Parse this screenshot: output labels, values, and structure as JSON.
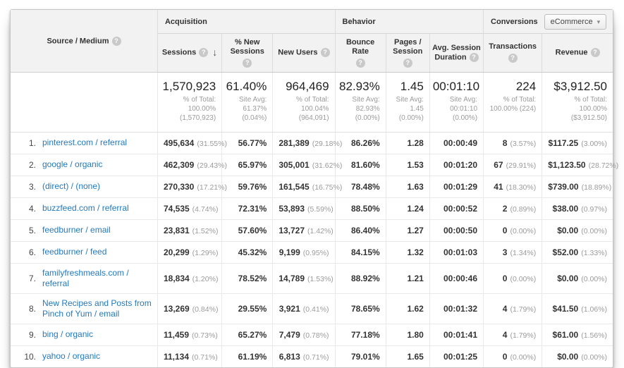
{
  "icons": {
    "help": "?",
    "sort_desc": "↓",
    "dropdown_caret": "▾"
  },
  "colors": {
    "link_blue": "#2379bd",
    "header_bg": "#f2f2f2",
    "value_text": "#333333",
    "muted_text": "#9b9b9b"
  },
  "table": {
    "dimension_header": "Source / Medium",
    "groups": {
      "acquisition": "Acquisition",
      "behavior": "Behavior",
      "conversions": "Conversions",
      "conversions_dropdown": "eCommerce"
    },
    "columns": [
      {
        "key": "sessions",
        "label": "Sessions",
        "sorted_desc": true
      },
      {
        "key": "pct_new_sessions",
        "label": "% New Sessions"
      },
      {
        "key": "new_users",
        "label": "New Users"
      },
      {
        "key": "bounce_rate",
        "label": "Bounce Rate"
      },
      {
        "key": "pages_session",
        "label": "Pages / Session"
      },
      {
        "key": "avg_duration",
        "label": "Avg. Session Duration"
      },
      {
        "key": "transactions",
        "label": "Transactions"
      },
      {
        "key": "revenue",
        "label": "Revenue"
      }
    ],
    "totals": [
      {
        "value": "1,570,923",
        "sub": "% of Total:\n100.00%\n(1,570,923)"
      },
      {
        "value": "61.40%",
        "sub": "Site Avg:\n61.37%\n(0.04%)"
      },
      {
        "value": "964,469",
        "sub": "% of Total:\n100.04% (964,091)"
      },
      {
        "value": "82.93%",
        "sub": "Site Avg:\n82.93%\n(0.00%)"
      },
      {
        "value": "1.45",
        "sub": "Site Avg:\n1.45\n(0.00%)"
      },
      {
        "value": "00:01:10",
        "sub": "Site Avg:\n00:01:10\n(0.00%)"
      },
      {
        "value": "224",
        "sub": "% of Total:\n100.00% (224)"
      },
      {
        "value": "$3,912.50",
        "sub": "% of Total: 100.00%\n($3,912.50)"
      }
    ],
    "rows": [
      {
        "rank": "1.",
        "source": "pinterest.com / referral",
        "sessions": "495,634",
        "sessions_pct": "(31.55%)",
        "pct_new_sessions": "56.77%",
        "new_users": "281,389",
        "new_users_pct": "(29.18%)",
        "bounce_rate": "86.26%",
        "pages_session": "1.28",
        "avg_duration": "00:00:49",
        "transactions": "8",
        "transactions_pct": "(3.57%)",
        "revenue": "$117.25",
        "revenue_pct": "(3.00%)"
      },
      {
        "rank": "2.",
        "source": "google / organic",
        "sessions": "462,309",
        "sessions_pct": "(29.43%)",
        "pct_new_sessions": "65.97%",
        "new_users": "305,001",
        "new_users_pct": "(31.62%)",
        "bounce_rate": "81.60%",
        "pages_session": "1.53",
        "avg_duration": "00:01:20",
        "transactions": "67",
        "transactions_pct": "(29.91%)",
        "revenue": "$1,123.50",
        "revenue_pct": "(28.72%)"
      },
      {
        "rank": "3.",
        "source": "(direct) / (none)",
        "sessions": "270,330",
        "sessions_pct": "(17.21%)",
        "pct_new_sessions": "59.76%",
        "new_users": "161,545",
        "new_users_pct": "(16.75%)",
        "bounce_rate": "78.48%",
        "pages_session": "1.63",
        "avg_duration": "00:01:29",
        "transactions": "41",
        "transactions_pct": "(18.30%)",
        "revenue": "$739.00",
        "revenue_pct": "(18.89%)"
      },
      {
        "rank": "4.",
        "source": "buzzfeed.com / referral",
        "sessions": "74,535",
        "sessions_pct": "(4.74%)",
        "pct_new_sessions": "72.31%",
        "new_users": "53,893",
        "new_users_pct": "(5.59%)",
        "bounce_rate": "88.50%",
        "pages_session": "1.24",
        "avg_duration": "00:00:52",
        "transactions": "2",
        "transactions_pct": "(0.89%)",
        "revenue": "$38.00",
        "revenue_pct": "(0.97%)"
      },
      {
        "rank": "5.",
        "source": "feedburner / email",
        "sessions": "23,831",
        "sessions_pct": "(1.52%)",
        "pct_new_sessions": "57.60%",
        "new_users": "13,727",
        "new_users_pct": "(1.42%)",
        "bounce_rate": "86.40%",
        "pages_session": "1.27",
        "avg_duration": "00:00:50",
        "transactions": "0",
        "transactions_pct": "(0.00%)",
        "revenue": "$0.00",
        "revenue_pct": "(0.00%)"
      },
      {
        "rank": "6.",
        "source": "feedburner / feed",
        "sessions": "20,299",
        "sessions_pct": "(1.29%)",
        "pct_new_sessions": "45.32%",
        "new_users": "9,199",
        "new_users_pct": "(0.95%)",
        "bounce_rate": "84.15%",
        "pages_session": "1.32",
        "avg_duration": "00:01:03",
        "transactions": "3",
        "transactions_pct": "(1.34%)",
        "revenue": "$52.00",
        "revenue_pct": "(1.33%)"
      },
      {
        "rank": "7.",
        "source": "familyfreshmeals.com / referral",
        "sessions": "18,834",
        "sessions_pct": "(1.20%)",
        "pct_new_sessions": "78.52%",
        "new_users": "14,789",
        "new_users_pct": "(1.53%)",
        "bounce_rate": "88.92%",
        "pages_session": "1.21",
        "avg_duration": "00:00:46",
        "transactions": "0",
        "transactions_pct": "(0.00%)",
        "revenue": "$0.00",
        "revenue_pct": "(0.00%)"
      },
      {
        "rank": "8.",
        "source": "New Recipes and Posts from Pinch of Yum / email",
        "sessions": "13,269",
        "sessions_pct": "(0.84%)",
        "pct_new_sessions": "29.55%",
        "new_users": "3,921",
        "new_users_pct": "(0.41%)",
        "bounce_rate": "78.65%",
        "pages_session": "1.62",
        "avg_duration": "00:01:32",
        "transactions": "4",
        "transactions_pct": "(1.79%)",
        "revenue": "$41.50",
        "revenue_pct": "(1.06%)"
      },
      {
        "rank": "9.",
        "source": "bing / organic",
        "sessions": "11,459",
        "sessions_pct": "(0.73%)",
        "pct_new_sessions": "65.27%",
        "new_users": "7,479",
        "new_users_pct": "(0.78%)",
        "bounce_rate": "77.18%",
        "pages_session": "1.80",
        "avg_duration": "00:01:41",
        "transactions": "4",
        "transactions_pct": "(1.79%)",
        "revenue": "$61.00",
        "revenue_pct": "(1.56%)"
      },
      {
        "rank": "10.",
        "source": "yahoo / organic",
        "sessions": "11,134",
        "sessions_pct": "(0.71%)",
        "pct_new_sessions": "61.19%",
        "new_users": "6,813",
        "new_users_pct": "(0.71%)",
        "bounce_rate": "79.01%",
        "pages_session": "1.65",
        "avg_duration": "00:01:25",
        "transactions": "0",
        "transactions_pct": "(0.00%)",
        "revenue": "$0.00",
        "revenue_pct": "(0.00%)"
      }
    ]
  }
}
